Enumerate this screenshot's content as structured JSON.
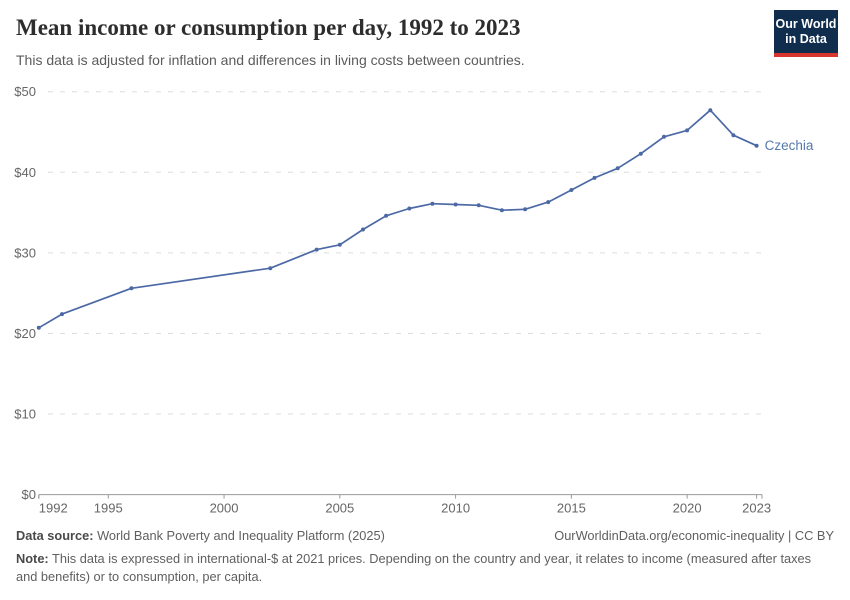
{
  "header": {
    "title": "Mean income or consumption per day, 1992 to 2023",
    "subtitle": "This data is adjusted for inflation and differences in living costs between countries."
  },
  "logo": {
    "line1": "Our World",
    "line2": "in Data",
    "bg_color": "#102d4e",
    "bar_color": "#d8352f"
  },
  "chart_data": {
    "type": "line",
    "title": "Mean income or consumption per day, 1992 to 2023",
    "entity_label": "Czechia",
    "line_color": "#4c69a5",
    "label_color": "#5779ae",
    "grid_color": "#dedede",
    "axis_color": "#999999",
    "tick_label_color": "#666666",
    "y_tick_prefix": "$",
    "xlim": [
      1992,
      2023
    ],
    "ylim": [
      0,
      50
    ],
    "x_ticks": [
      1992,
      1995,
      2000,
      2005,
      2010,
      2015,
      2020,
      2023
    ],
    "y_ticks": [
      0,
      10,
      20,
      30,
      40,
      50
    ],
    "grid": "horizontal-dashed",
    "legend_position": "end-of-line",
    "series": [
      {
        "name": "Czechia",
        "x": [
          1992,
          1993,
          1996,
          2002,
          2004,
          2005,
          2006,
          2007,
          2008,
          2009,
          2010,
          2011,
          2012,
          2013,
          2014,
          2015,
          2016,
          2017,
          2018,
          2019,
          2020,
          2021,
          2022,
          2023
        ],
        "values": [
          20.7,
          22.4,
          25.6,
          28.1,
          30.4,
          31.0,
          32.9,
          34.6,
          35.5,
          36.1,
          36.0,
          35.9,
          35.3,
          35.4,
          36.3,
          37.8,
          39.3,
          40.5,
          42.3,
          44.4,
          45.2,
          47.7,
          44.6,
          43.3
        ]
      }
    ]
  },
  "footer": {
    "datasource_label": "Data source:",
    "datasource_text": " World Bank Poverty and Inequality Platform (2025)",
    "link_text": "OurWorldinData.org/economic-inequality | CC BY",
    "note_label": "Note:",
    "note_text": " This data is expressed in international-$ at 2021 prices. Depending on the country and year, it relates to income (measured after taxes and benefits) or to consumption, per capita."
  }
}
